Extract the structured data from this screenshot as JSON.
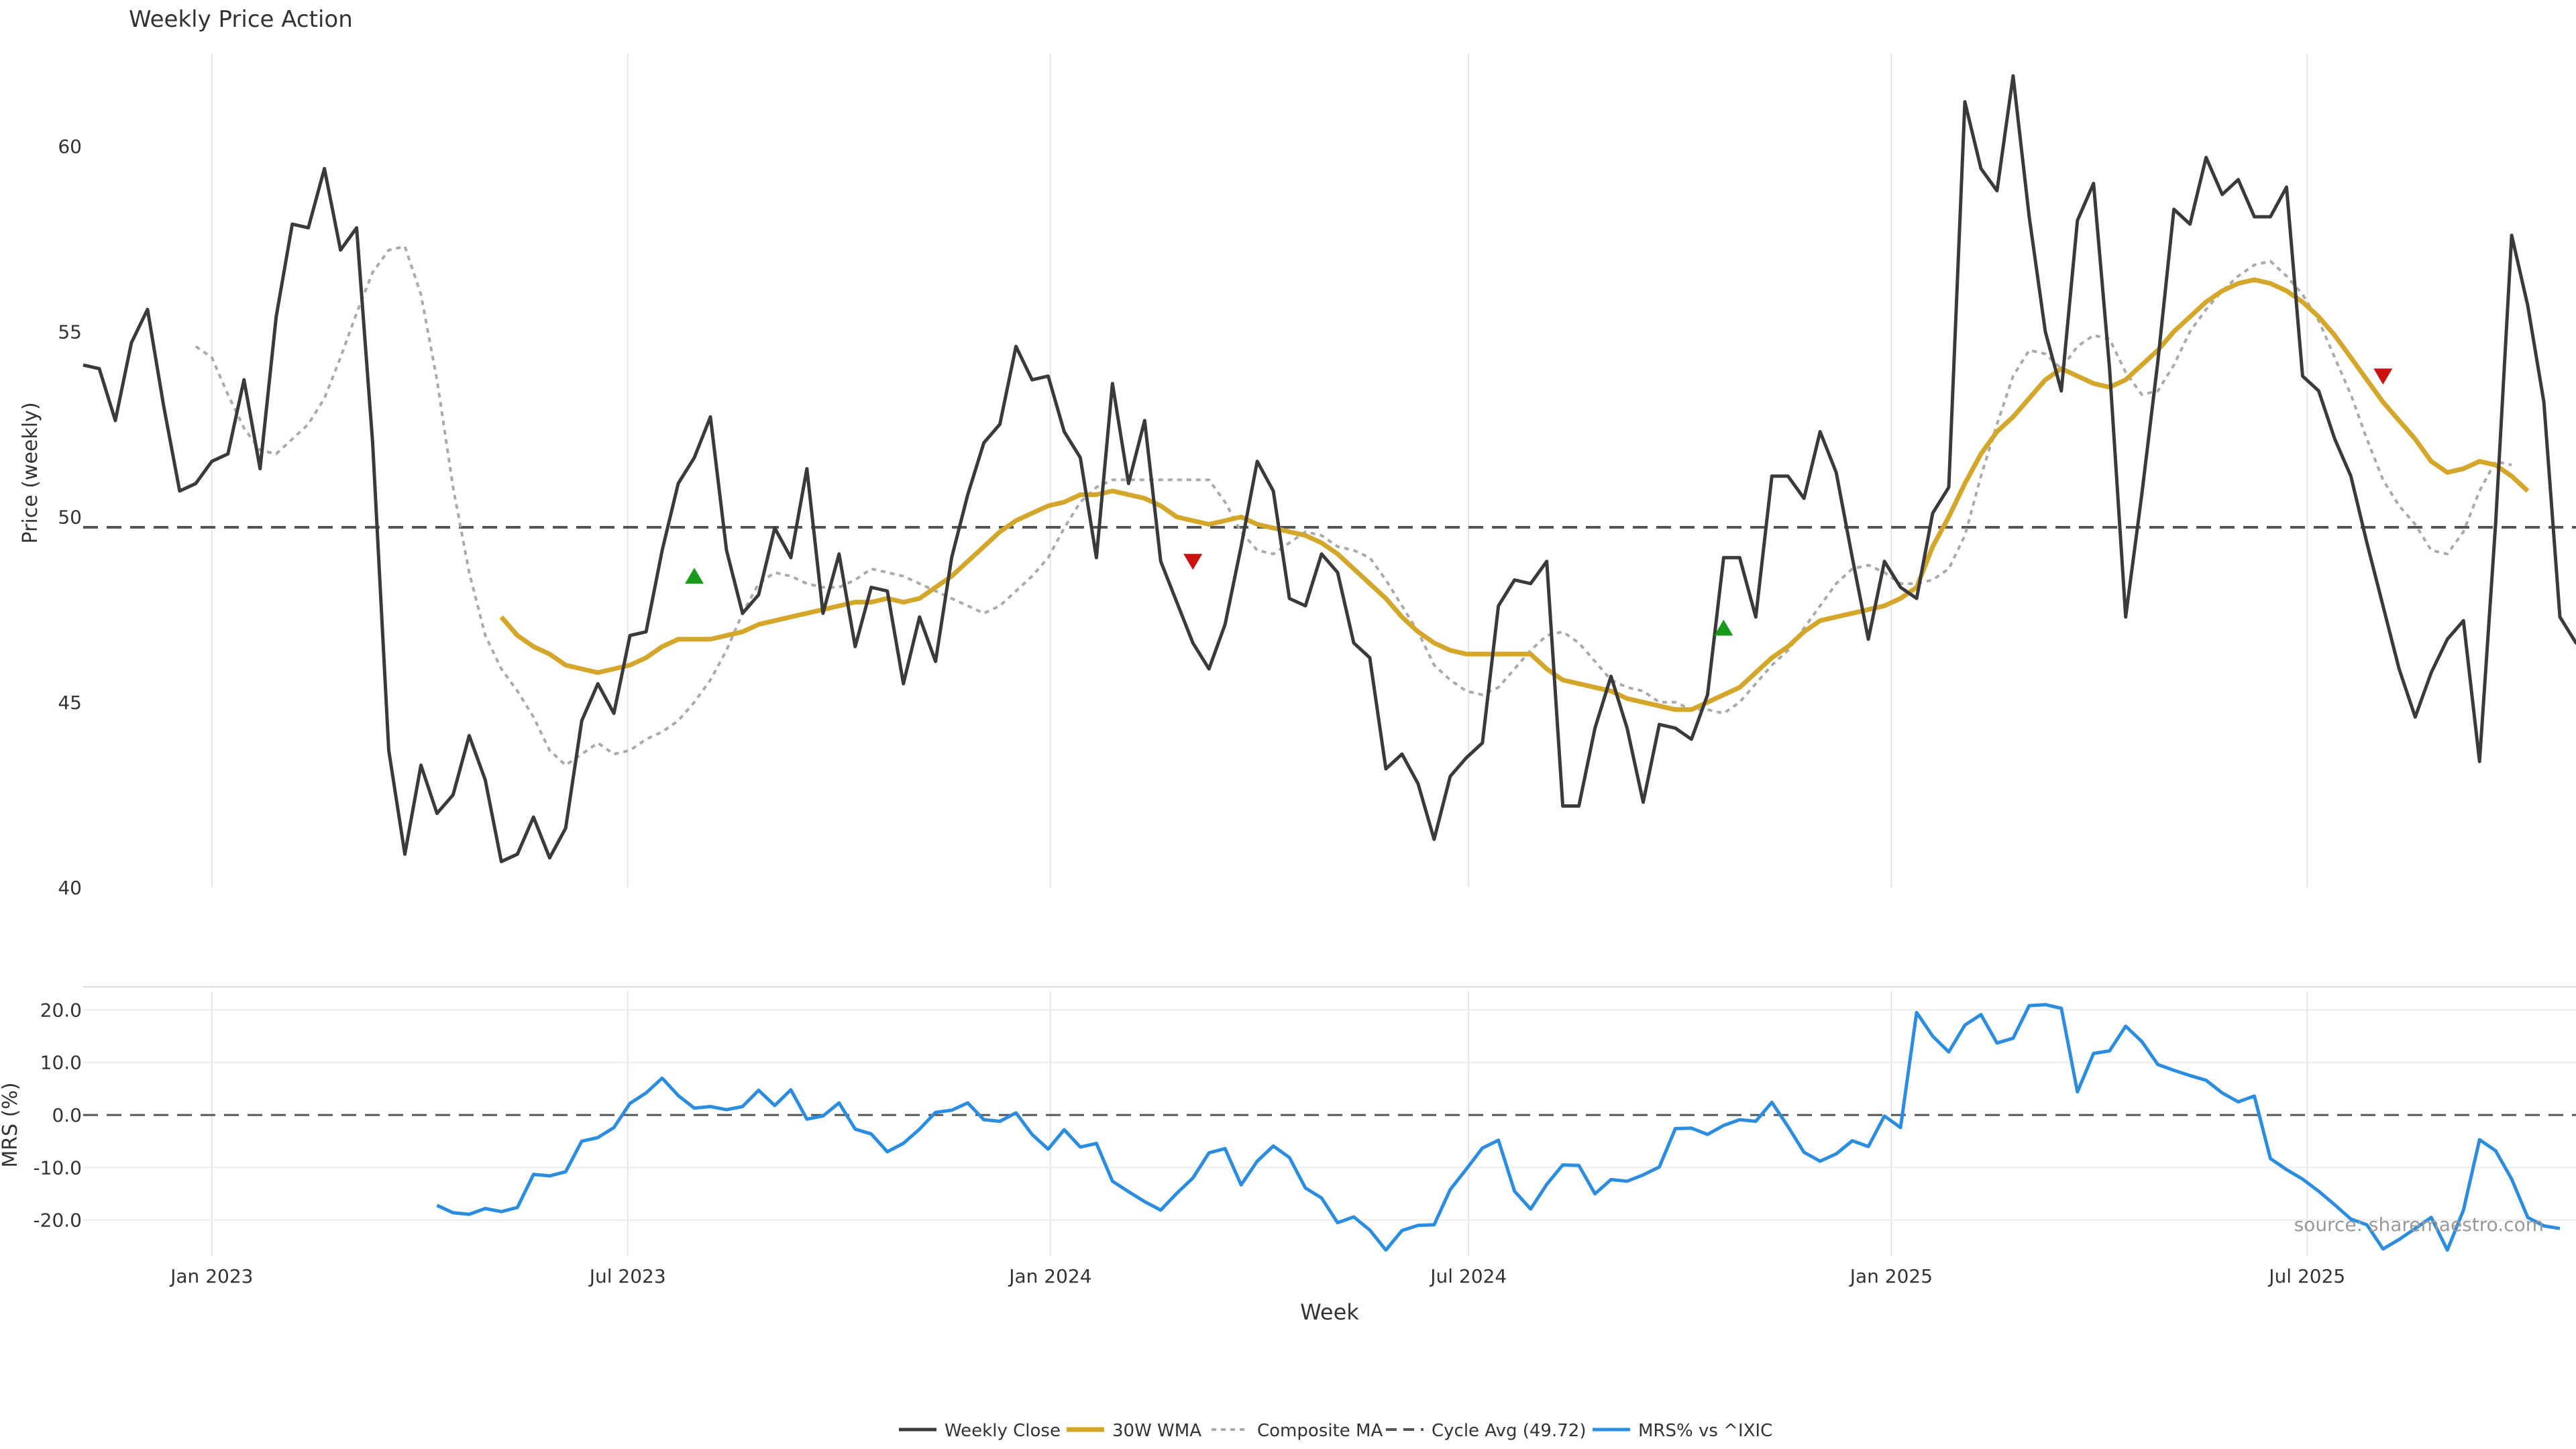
{
  "title": "Weekly Price Action",
  "source_note": "source: sharemaestro.com",
  "colors": {
    "close": "#3a3a3a",
    "wma": "#d4a62a",
    "composite": "#aaaaaa",
    "cycle": "#555555",
    "mrs": "#2a8de0",
    "buy": "#1a9a1a",
    "sell": "#cc1111",
    "grid": "#e6e6e6"
  },
  "chart_data": {
    "type": "line",
    "xlabel": "Week",
    "x_tick_labels": [
      "Jan 2023",
      "Jul 2023",
      "Jan 2024",
      "Jul 2024",
      "Jan 2025",
      "Jul 2025"
    ],
    "x_tick_dates": [
      "2023-01-01",
      "2023-07-01",
      "2024-01-01",
      "2024-07-01",
      "2025-01-01",
      "2025-07-01"
    ],
    "x_range": [
      "2022-11-06",
      "2025-10-26"
    ],
    "grid": true,
    "legend_position": "bottom",
    "legend": [
      "Weekly Close",
      "30W WMA",
      "Composite MA",
      "Cycle Avg (49.72)",
      "MRS% vs ^IXIC"
    ],
    "price_panel": {
      "ylabel": "Price (weekly)",
      "ylim": [
        40,
        62.5
      ],
      "y_ticks": [
        "40",
        "45",
        "50",
        "55",
        "60"
      ],
      "cycle_avg": 49.72,
      "series": [
        {
          "name": "Weekly Close",
          "start": "2022-11-06",
          "values": [
            54.1,
            54.0,
            52.6,
            54.7,
            55.6,
            53.0,
            50.7,
            50.9,
            51.5,
            51.7,
            53.7,
            51.3,
            55.4,
            57.9,
            57.8,
            59.4,
            57.2,
            57.8,
            52.0,
            43.7,
            40.9,
            43.3,
            42.0,
            42.5,
            44.1,
            42.9,
            40.7,
            40.9,
            41.9,
            40.8,
            41.6,
            44.5,
            45.5,
            44.7,
            46.8,
            46.9,
            49.1,
            50.9,
            51.6,
            52.7,
            49.1,
            47.4,
            47.9,
            49.7,
            48.9,
            51.3,
            47.4,
            49.0,
            46.5,
            48.1,
            48.0,
            45.5,
            47.3,
            46.1,
            48.9,
            50.6,
            52.0,
            52.5,
            54.6,
            53.7,
            53.8,
            52.3,
            51.6,
            48.9,
            53.6,
            50.9,
            52.6,
            48.8,
            47.7,
            46.6,
            45.9,
            47.1,
            49.2,
            51.5,
            50.7,
            47.8,
            47.6,
            49.0,
            48.5,
            46.6,
            46.2,
            43.2,
            43.6,
            42.8,
            41.3,
            43.0,
            43.5,
            43.9,
            47.6,
            48.3,
            48.2,
            48.8,
            42.2,
            42.2,
            44.3,
            45.7,
            44.3,
            42.3,
            44.4,
            44.3,
            44.0,
            45.2,
            48.9,
            48.9,
            47.3,
            51.1,
            51.1,
            50.5,
            52.3,
            51.2,
            48.9,
            46.7,
            48.8,
            48.1,
            47.8,
            50.1,
            50.8,
            61.2,
            59.4,
            58.8,
            61.9,
            58.1,
            55.0,
            53.4,
            58.0,
            59.0,
            54.0,
            47.3,
            50.6,
            54.2,
            58.3,
            57.9,
            59.7,
            58.7,
            59.1,
            58.1,
            58.1,
            58.9,
            53.8,
            53.4,
            52.1,
            51.1,
            49.3,
            47.6,
            45.9,
            44.6,
            45.8,
            46.7,
            47.2,
            43.4,
            49.8,
            57.6,
            55.7,
            53.1,
            47.3,
            46.6,
            46.7
          ]
        },
        {
          "name": "30W WMA",
          "start": "2023-05-07",
          "values": [
            47.3,
            46.8,
            46.5,
            46.3,
            46.0,
            45.9,
            45.8,
            45.9,
            46.0,
            46.2,
            46.5,
            46.7,
            46.7,
            46.7,
            46.8,
            46.9,
            47.1,
            47.2,
            47.3,
            47.4,
            47.5,
            47.6,
            47.7,
            47.7,
            47.8,
            47.7,
            47.8,
            48.1,
            48.4,
            48.8,
            49.2,
            49.6,
            49.9,
            50.1,
            50.3,
            50.4,
            50.6,
            50.6,
            50.7,
            50.6,
            50.5,
            50.3,
            50.0,
            49.9,
            49.8,
            49.9,
            50.0,
            49.8,
            49.7,
            49.6,
            49.5,
            49.3,
            49.0,
            48.6,
            48.2,
            47.8,
            47.3,
            46.9,
            46.6,
            46.4,
            46.3,
            46.3,
            46.3,
            46.3,
            46.3,
            45.9,
            45.6,
            45.5,
            45.4,
            45.3,
            45.1,
            45.0,
            44.9,
            44.8,
            44.8,
            45.0,
            45.2,
            45.4,
            45.8,
            46.2,
            46.5,
            46.9,
            47.2,
            47.3,
            47.4,
            47.5,
            47.6,
            47.8,
            48.1,
            49.2,
            50.0,
            50.9,
            51.7,
            52.3,
            52.7,
            53.2,
            53.7,
            54.0,
            53.8,
            53.6,
            53.5,
            53.7,
            54.1,
            54.5,
            55.0,
            55.4,
            55.8,
            56.1,
            56.3,
            56.4,
            56.3,
            56.1,
            55.8,
            55.4,
            54.9,
            54.3,
            53.7,
            53.1,
            52.6,
            52.1,
            51.5,
            51.2,
            51.3,
            51.5,
            51.4,
            51.1,
            50.7
          ]
        },
        {
          "name": "Composite MA",
          "start": "2022-12-25",
          "values": [
            54.6,
            54.3,
            53.3,
            52.4,
            51.8,
            51.7,
            52.1,
            52.5,
            53.2,
            54.3,
            55.5,
            56.6,
            57.2,
            57.3,
            56.0,
            53.7,
            50.8,
            48.5,
            46.8,
            45.9,
            45.3,
            44.6,
            43.7,
            43.3,
            43.6,
            43.9,
            43.6,
            43.7,
            44.0,
            44.2,
            44.5,
            45.0,
            45.6,
            46.4,
            47.4,
            48.2,
            48.5,
            48.4,
            48.2,
            48.1,
            48.1,
            48.3,
            48.6,
            48.5,
            48.4,
            48.2,
            48.0,
            47.8,
            47.6,
            47.4,
            47.6,
            48.0,
            48.4,
            48.9,
            49.7,
            50.4,
            50.8,
            51.0,
            51.0,
            51.0,
            51.0,
            51.0,
            51.0,
            51.0,
            50.4,
            49.6,
            49.1,
            49.0,
            49.3,
            49.6,
            49.5,
            49.2,
            49.1,
            48.9,
            48.3,
            47.6,
            46.9,
            46.0,
            45.6,
            45.3,
            45.2,
            45.4,
            45.9,
            46.4,
            46.8,
            46.9,
            46.6,
            46.1,
            45.6,
            45.4,
            45.3,
            45.0,
            45.0,
            44.8,
            44.8,
            44.7,
            45.0,
            45.5,
            46.0,
            46.4,
            47.0,
            47.6,
            48.2,
            48.6,
            48.7,
            48.5,
            48.2,
            48.2,
            48.3,
            48.6,
            49.5,
            51.1,
            52.5,
            53.8,
            54.5,
            54.4,
            54.0,
            54.6,
            54.9,
            54.8,
            53.9,
            53.3,
            53.4,
            54.1,
            55.0,
            55.6,
            56.1,
            56.5,
            56.8,
            56.9,
            56.5,
            56.0,
            55.3,
            54.3,
            53.3,
            52.1,
            51.0,
            50.3,
            49.8,
            49.1,
            49.0,
            49.6,
            50.7,
            51.5,
            51.4
          ]
        }
      ],
      "annotations": [
        {
          "type": "buy",
          "date": "2023-07-30",
          "value": 48.4
        },
        {
          "type": "sell",
          "date": "2024-03-03",
          "value": 48.8
        },
        {
          "type": "buy",
          "date": "2024-10-20",
          "value": 47.0
        },
        {
          "type": "sell",
          "date": "2025-08-03",
          "value": 53.8
        }
      ]
    },
    "mrs_panel": {
      "ylabel": "MRS (%)",
      "ylim": [
        -26.8,
        23.5
      ],
      "y_ticks": [
        "-20.0",
        "-10.0",
        "0.0",
        "10.0",
        "20.0"
      ],
      "zero_line": 0,
      "series": [
        {
          "name": "MRS% vs ^IXIC",
          "start": "2023-04-09",
          "values": [
            -17.2,
            -18.6,
            -18.9,
            -17.8,
            -18.4,
            -17.6,
            -11.3,
            -11.6,
            -10.8,
            -5.0,
            -4.3,
            -2.4,
            2.2,
            4.2,
            7.0,
            3.7,
            1.3,
            1.6,
            1.0,
            1.6,
            4.7,
            1.8,
            4.8,
            -0.8,
            -0.2,
            2.3,
            -2.7,
            -3.6,
            -7.0,
            -5.4,
            -2.7,
            0.5,
            0.9,
            2.3,
            -0.9,
            -1.2,
            0.4,
            -3.7,
            -6.5,
            -2.8,
            -6.1,
            -5.4,
            -12.6,
            -14.6,
            -16.5,
            -18.1,
            -14.9,
            -12.0,
            -7.2,
            -6.4,
            -13.3,
            -8.8,
            -5.9,
            -8.1,
            -13.9,
            -15.8,
            -20.5,
            -19.4,
            -21.9,
            -25.7,
            -22.0,
            -21.0,
            -20.9,
            -14.2,
            -10.3,
            -6.3,
            -4.8,
            -14.5,
            -17.9,
            -13.2,
            -9.5,
            -9.6,
            -15.0,
            -12.3,
            -12.6,
            -11.4,
            -9.9,
            -2.6,
            -2.5,
            -3.7,
            -2.0,
            -0.9,
            -1.2,
            2.4,
            -2.2,
            -7.1,
            -8.8,
            -7.4,
            -4.9,
            -6.0,
            -0.2,
            -2.4,
            19.5,
            15.0,
            12.0,
            17.1,
            19.1,
            13.7,
            14.6,
            20.8,
            21.0,
            20.3,
            4.4,
            11.7,
            12.2,
            16.9,
            14.0,
            9.6,
            8.5,
            7.5,
            6.6,
            4.2,
            2.5,
            3.6,
            -8.3,
            -10.4,
            -12.2,
            -14.5,
            -17.1,
            -19.8,
            -20.9,
            -25.5,
            -23.7,
            -21.6,
            -19.5,
            -25.7,
            -18.1,
            -4.7,
            -6.8,
            -12.2,
            -19.5,
            -21.1,
            -21.6
          ]
        }
      ]
    }
  }
}
